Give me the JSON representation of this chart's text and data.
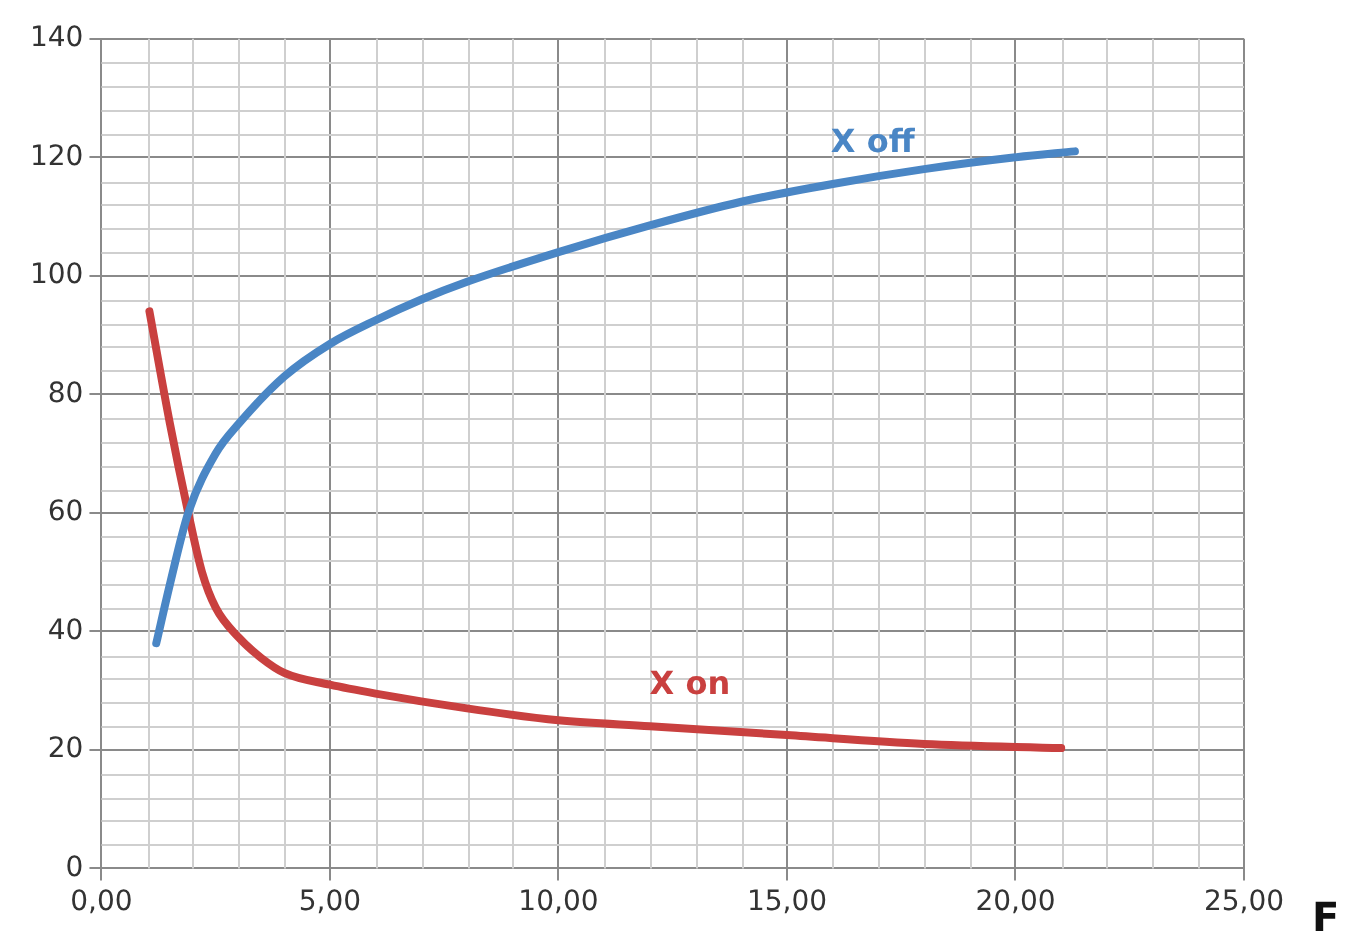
{
  "chart_data": {
    "type": "line",
    "xlabel": "F",
    "xlim": [
      0,
      25
    ],
    "xticks": [
      {
        "value": 0,
        "label": "0,00"
      },
      {
        "value": 5,
        "label": "5,00"
      },
      {
        "value": 10,
        "label": "10,00"
      },
      {
        "value": 15,
        "label": "15,00"
      },
      {
        "value": 20,
        "label": "20,00"
      },
      {
        "value": 25,
        "label": "25,00"
      }
    ],
    "ylim": [
      0,
      140
    ],
    "yticks": [
      0,
      20,
      40,
      60,
      80,
      100,
      120,
      140
    ],
    "grid": true,
    "legend": false,
    "marker": "none",
    "line_style": "solid",
    "series": [
      {
        "name": "X off",
        "color": "#4a86c5",
        "x": [
          1.2,
          1.5,
          1.9,
          2.5,
          3,
          4,
          5,
          6,
          7,
          8,
          10,
          12,
          14,
          16,
          18,
          20,
          21.3
        ],
        "values": [
          38,
          48,
          60,
          70,
          75,
          83,
          88.5,
          92.5,
          96,
          99,
          104,
          108.5,
          112.5,
          115.5,
          118,
          120,
          121
        ]
      },
      {
        "name": "X on",
        "color": "#c9403f",
        "x": [
          1.05,
          1.5,
          1.9,
          2.2,
          2.5,
          3,
          3.5,
          4,
          5,
          6,
          8,
          10,
          12,
          15,
          18,
          21
        ],
        "values": [
          94,
          75,
          60,
          50,
          44,
          39,
          35.5,
          33,
          31,
          29.5,
          27,
          25,
          24,
          22.5,
          21,
          20.3
        ]
      }
    ]
  }
}
